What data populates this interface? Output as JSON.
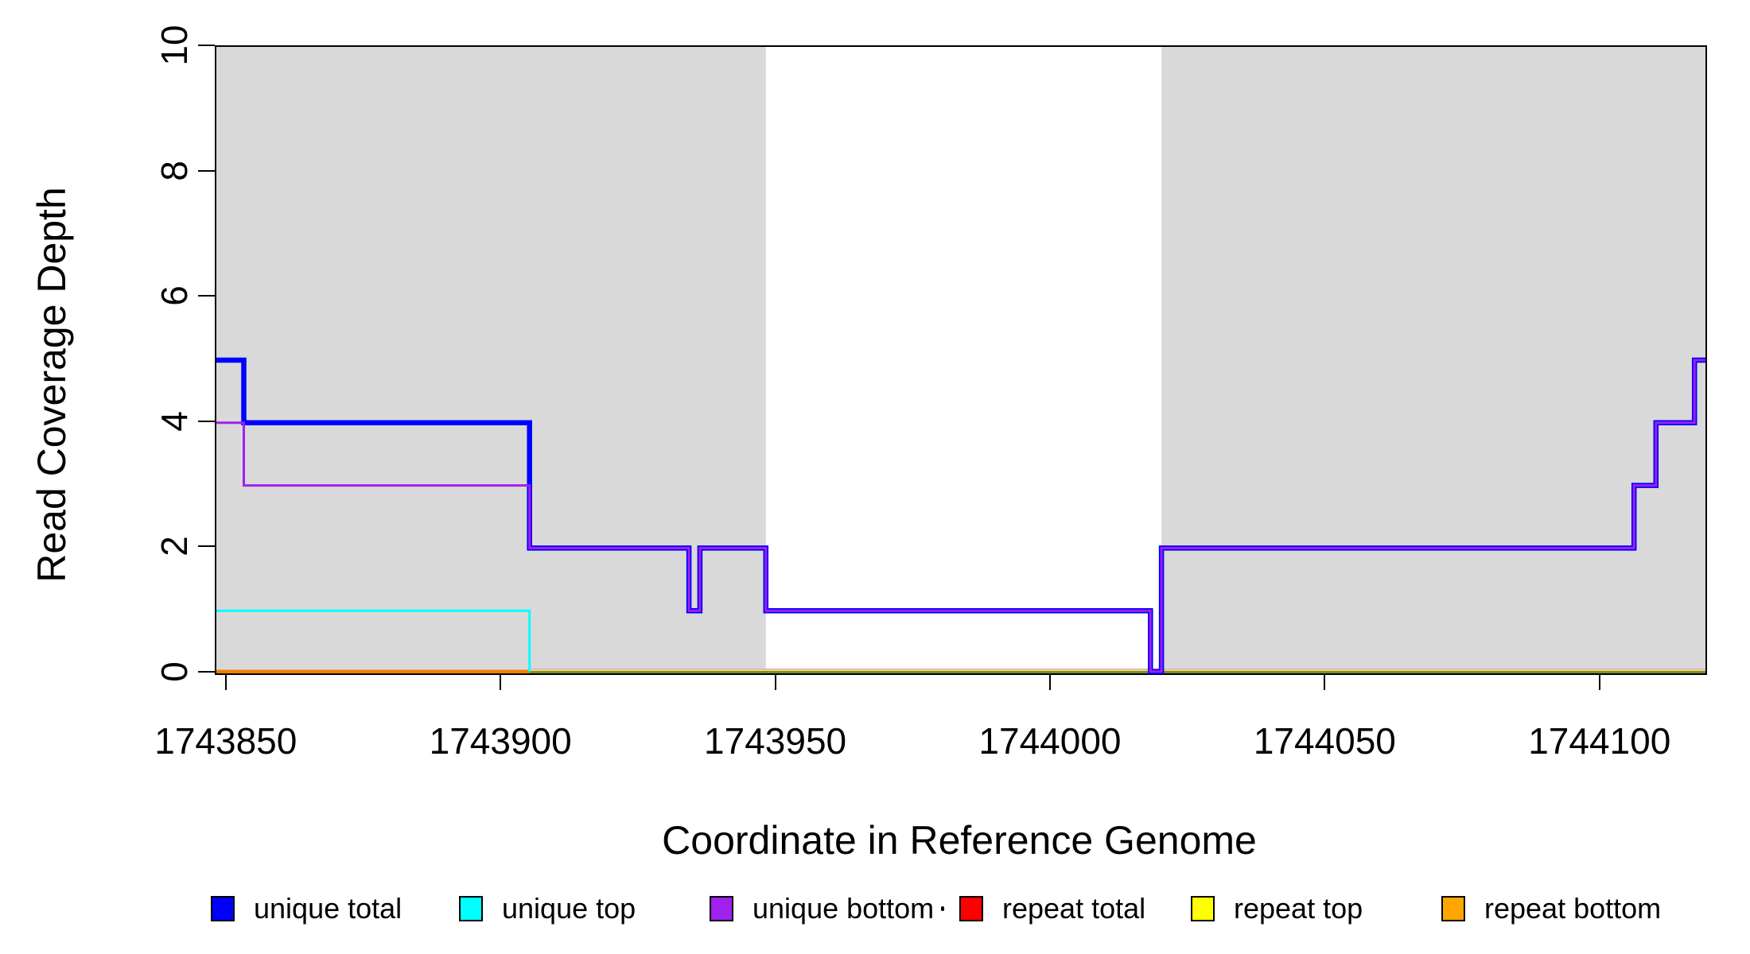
{
  "figure": {
    "xlabel": "Coordinate in Reference Genome",
    "ylabel": "Read Coverage Depth"
  },
  "chart_data": {
    "type": "line",
    "step_style": "post",
    "title": "",
    "xlabel": "Coordinate in Reference Genome",
    "ylabel": "Read Coverage Depth",
    "xlim": [
      1743848,
      1744119
    ],
    "ylim": [
      0,
      10
    ],
    "xticks": [
      1743850,
      1743900,
      1743950,
      1744000,
      1744050,
      1744100
    ],
    "yticks": [
      0,
      2,
      4,
      6,
      8,
      10
    ],
    "grid": false,
    "background_shading": {
      "color": "#D9D9D9",
      "regions": [
        {
          "start": 1743848,
          "end": 1743948
        },
        {
          "start": 1744020,
          "end": 1744119
        }
      ]
    },
    "series": [
      {
        "name": "repeat total",
        "color": "#FF0000",
        "line_width": 4.5,
        "steps": [
          [
            1743848,
            0
          ],
          [
            1744119,
            0
          ]
        ]
      },
      {
        "name": "repeat top",
        "color": "#FFFF00",
        "line_width": 4.5,
        "steps": [
          [
            1743848,
            0
          ],
          [
            1744119,
            0
          ]
        ]
      },
      {
        "name": "repeat bottom",
        "color": "#F08000",
        "line_width": 4.5,
        "steps": [
          [
            1743848,
            0
          ],
          [
            1743905,
            0
          ]
        ]
      },
      {
        "name": "unique top",
        "color": "#00FFFF",
        "line_width": 3,
        "steps": [
          [
            1743848,
            1
          ],
          [
            1743905,
            0
          ]
        ]
      },
      {
        "name": "unique total",
        "color": "#0000FF",
        "line_width": 6.5,
        "steps": [
          [
            1743848,
            5
          ],
          [
            1743853,
            4
          ],
          [
            1743905,
            2
          ],
          [
            1743934,
            1
          ],
          [
            1743936,
            2
          ],
          [
            1743948,
            1
          ],
          [
            1744018,
            0
          ],
          [
            1744020,
            2
          ],
          [
            1744106,
            3
          ],
          [
            1744110,
            4
          ],
          [
            1744117,
            5
          ],
          [
            1744119,
            5
          ]
        ]
      },
      {
        "name": "unique bottom",
        "color": "#A020F0",
        "line_width": 3,
        "steps": [
          [
            1743848,
            4
          ],
          [
            1743853,
            3
          ],
          [
            1743905,
            2
          ],
          [
            1743934,
            1
          ],
          [
            1743936,
            2
          ],
          [
            1743948,
            1
          ],
          [
            1744018,
            0
          ],
          [
            1744020,
            2
          ],
          [
            1744106,
            3
          ],
          [
            1744110,
            4
          ],
          [
            1744117,
            5
          ],
          [
            1744119,
            5
          ]
        ]
      }
    ],
    "zero_line_artifacts": [
      {
        "name": "zero-line-pink",
        "color": "#E6B9BE",
        "start": 1743905,
        "end": 1744119
      },
      {
        "name": "zero-line-green",
        "color": "#6E8F3C",
        "start": 1743905,
        "end": 1744119
      }
    ],
    "legend": {
      "position": "bottom",
      "entries": [
        {
          "label": "unique total",
          "color": "#0000FF"
        },
        {
          "label": "unique top",
          "color": "#00FFFF"
        },
        {
          "label": "unique bottom",
          "color": "#A020F0"
        },
        {
          "label": "repeat total",
          "color": "#FF0000"
        },
        {
          "label": "repeat top",
          "color": "#FFFF00"
        },
        {
          "label": "repeat bottom",
          "color": "#FFA500"
        }
      ]
    },
    "stray_dot": {
      "x": 1183,
      "y": 1140
    }
  }
}
